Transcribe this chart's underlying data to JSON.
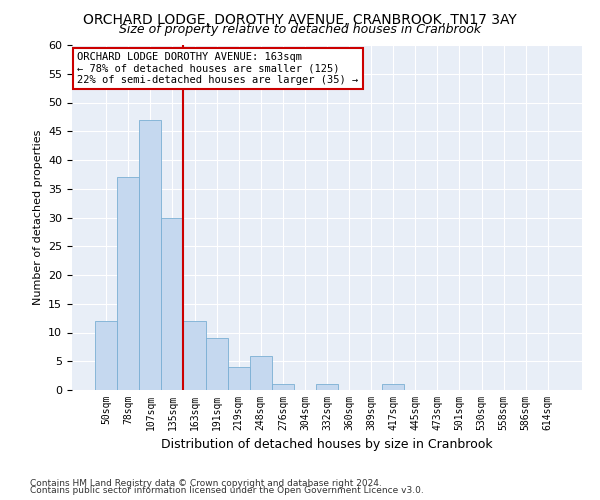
{
  "title": "ORCHARD LODGE, DOROTHY AVENUE, CRANBROOK, TN17 3AY",
  "subtitle": "Size of property relative to detached houses in Cranbrook",
  "xlabel": "Distribution of detached houses by size in Cranbrook",
  "ylabel": "Number of detached properties",
  "bar_labels": [
    "50sqm",
    "78sqm",
    "107sqm",
    "135sqm",
    "163sqm",
    "191sqm",
    "219sqm",
    "248sqm",
    "276sqm",
    "304sqm",
    "332sqm",
    "360sqm",
    "389sqm",
    "417sqm",
    "445sqm",
    "473sqm",
    "501sqm",
    "530sqm",
    "558sqm",
    "586sqm",
    "614sqm"
  ],
  "bar_values": [
    12,
    37,
    47,
    30,
    12,
    9,
    4,
    6,
    1,
    0,
    1,
    0,
    0,
    1,
    0,
    0,
    0,
    0,
    0,
    0,
    0
  ],
  "bar_color": "#c5d8ef",
  "bar_edge_color": "#7aafd4",
  "vline_index": 4,
  "vline_color": "#cc0000",
  "ylim": [
    0,
    60
  ],
  "yticks": [
    0,
    5,
    10,
    15,
    20,
    25,
    30,
    35,
    40,
    45,
    50,
    55,
    60
  ],
  "annotation_title": "ORCHARD LODGE DOROTHY AVENUE: 163sqm",
  "annotation_line1": "← 78% of detached houses are smaller (125)",
  "annotation_line2": "22% of semi-detached houses are larger (35) →",
  "annotation_box_facecolor": "#ffffff",
  "annotation_box_edgecolor": "#cc0000",
  "footnote1": "Contains HM Land Registry data © Crown copyright and database right 2024.",
  "footnote2": "Contains public sector information licensed under the Open Government Licence v3.0.",
  "bg_color": "#ffffff",
  "plot_bg_color": "#e8eef7",
  "title_fontsize": 10,
  "subtitle_fontsize": 9,
  "ylabel_fontsize": 8,
  "xlabel_fontsize": 9,
  "tick_fontsize": 8,
  "xtick_fontsize": 7,
  "annotation_fontsize": 7.5,
  "footnote_fontsize": 6.5
}
